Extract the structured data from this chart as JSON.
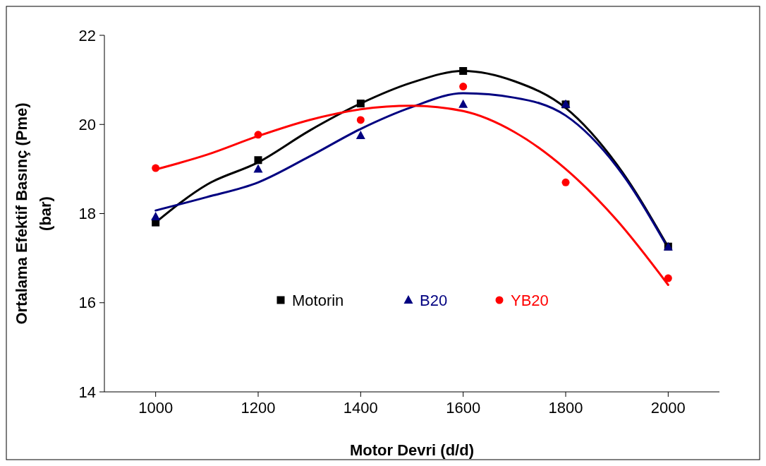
{
  "chart_data": {
    "type": "scatter",
    "xlabel": "Motor Devri (d/d)",
    "ylabel": "Ortalama Efektif Basınç (Pme) (bar)",
    "xlim": [
      900,
      2100
    ],
    "xticks": [
      1000,
      1200,
      1400,
      1600,
      1800,
      2000
    ],
    "ylim": [
      14,
      22
    ],
    "yticks": [
      14,
      16,
      18,
      20,
      22
    ],
    "grid": false,
    "legend": "bottom",
    "series": [
      {
        "type": "line",
        "color": "#000000",
        "marker": "none",
        "x": [
          1000,
          1100,
          1200,
          1300,
          1400,
          1500,
          1600,
          1700,
          1800,
          1900,
          2000
        ],
        "values": [
          17.8,
          18.65,
          19.15,
          19.86,
          20.47,
          20.94,
          21.2,
          20.97,
          20.37,
          19.1,
          17.25
        ]
      },
      {
        "type": "line",
        "color": "#000080",
        "marker": "none",
        "x": [
          1000,
          1100,
          1200,
          1300,
          1400,
          1500,
          1600,
          1700,
          1800,
          1900,
          2000
        ],
        "values": [
          18.07,
          18.37,
          18.7,
          19.28,
          19.9,
          20.39,
          20.7,
          20.6,
          20.2,
          19.05,
          17.22
        ]
      },
      {
        "type": "line",
        "color": "#ff0000",
        "marker": "none",
        "x": [
          1000,
          1100,
          1200,
          1300,
          1400,
          1500,
          1600,
          1700,
          1800,
          1900,
          2000
        ],
        "values": [
          18.99,
          19.32,
          19.74,
          20.1,
          20.34,
          20.42,
          20.3,
          19.83,
          19.0,
          17.85,
          16.4
        ]
      },
      {
        "name": "Motorin",
        "color": "#000000",
        "marker": "square",
        "x": [
          1000,
          1200,
          1400,
          1600,
          1800,
          2000
        ],
        "values": [
          17.8,
          19.2,
          20.47,
          21.2,
          20.45,
          17.26
        ]
      },
      {
        "name": "B20",
        "color": "#000080",
        "marker": "triangle",
        "x": [
          1000,
          1200,
          1400,
          1600,
          1800,
          2000
        ],
        "values": [
          17.93,
          19.0,
          19.75,
          20.45,
          20.45,
          17.25
        ]
      },
      {
        "name": "YB20",
        "color": "#ff0000",
        "marker": "circle",
        "x": [
          1000,
          1200,
          1400,
          1600,
          1800,
          2000
        ],
        "values": [
          19.02,
          19.77,
          20.1,
          20.85,
          18.7,
          16.55
        ]
      }
    ]
  }
}
